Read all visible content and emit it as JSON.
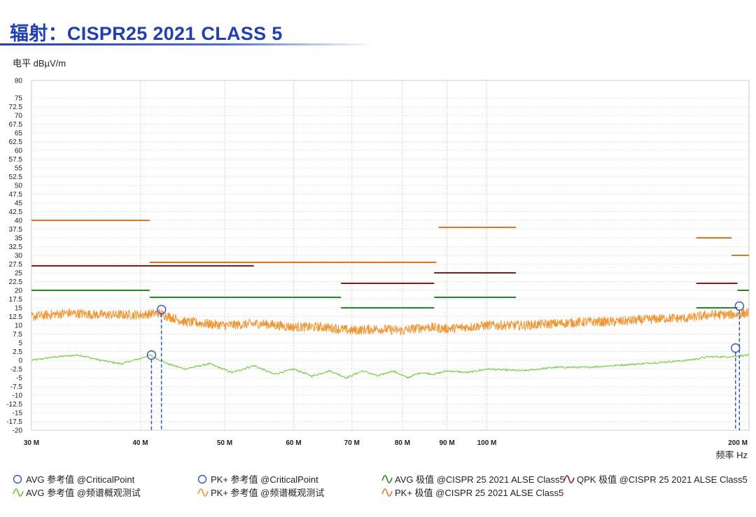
{
  "page": {
    "title": "辐射：CISPR25 2021 CLASS 5"
  },
  "chart_data": {
    "type": "line",
    "ylabel": "电平 dBµV/m",
    "xlabel": "频率 Hz",
    "x_scale": "log",
    "xlim": [
      30,
      200
    ],
    "ylim": [
      -20,
      80
    ],
    "x_ticks": [
      {
        "value": 30,
        "label": "30 M"
      },
      {
        "value": 40,
        "label": "40 M"
      },
      {
        "value": 50,
        "label": "50 M"
      },
      {
        "value": 60,
        "label": "60 M"
      },
      {
        "value": 70,
        "label": "70 M"
      },
      {
        "value": 80,
        "label": "80 M"
      },
      {
        "value": 90,
        "label": "90 M"
      },
      {
        "value": 100,
        "label": "100 M"
      },
      {
        "value": 200,
        "label": "200 M"
      }
    ],
    "y_ticks": [
      80,
      75,
      72.5,
      70,
      67.5,
      65,
      62.5,
      60,
      57.5,
      55,
      52.5,
      50,
      47.5,
      45,
      42.5,
      40,
      37.5,
      35,
      32.5,
      30,
      27.5,
      25,
      22.5,
      20,
      17.5,
      15,
      12.5,
      10,
      7.5,
      5,
      2.5,
      0,
      -2.5,
      -5,
      -7.5,
      -10,
      -12.5,
      -15,
      -17.5,
      -20
    ],
    "grid": true,
    "colors": {
      "pk_limit": "#e8741a",
      "qpk_limit": "#8b1a1a",
      "avg_limit": "#1e8c1e",
      "pk_trace": "#f5932a",
      "avg_trace": "#5ccc20",
      "marker": "#2f55d4"
    },
    "limits": {
      "pk": [
        {
          "x": [
            30,
            41
          ],
          "y": 40
        },
        {
          "x": [
            41,
            87.5
          ],
          "y": 28
        },
        {
          "x": [
            88,
            108
          ],
          "y": 38
        },
        {
          "x": [
            174,
            191
          ],
          "y": 35
        },
        {
          "x": [
            191,
            200
          ],
          "y": 30
        }
      ],
      "qpk": [
        {
          "x": [
            30,
            54
          ],
          "y": 27
        },
        {
          "x": [
            68,
            87
          ],
          "y": 22
        },
        {
          "x": [
            87,
            108
          ],
          "y": 25
        },
        {
          "x": [
            174,
            194
          ],
          "y": 22
        }
      ],
      "avg": [
        {
          "x": [
            30,
            41
          ],
          "y": 20
        },
        {
          "x": [
            41,
            68
          ],
          "y": 18
        },
        {
          "x": [
            68,
            87
          ],
          "y": 15
        },
        {
          "x": [
            87,
            108
          ],
          "y": 18
        },
        {
          "x": [
            174,
            194
          ],
          "y": 15
        },
        {
          "x": [
            194,
            200
          ],
          "y": 20
        }
      ]
    },
    "series": [
      {
        "name": "PK+ 参考值 @频谱概观测试",
        "x": [
          30,
          33,
          36,
          40,
          42,
          45,
          50,
          55,
          60,
          65,
          70,
          75,
          80,
          85,
          90,
          95,
          100,
          110,
          120,
          130,
          140,
          150,
          160,
          170,
          180,
          190,
          200
        ],
        "y": [
          12.5,
          13.5,
          13,
          13,
          13.5,
          11,
          10,
          10.5,
          9.5,
          9.5,
          8.5,
          9,
          8.5,
          9.5,
          9,
          9.5,
          10,
          10,
          10.5,
          11,
          11,
          11.5,
          12,
          12,
          13,
          13,
          13.5
        ]
      },
      {
        "name": "AVG 参考值 @频谱概观测试",
        "x": [
          30,
          32,
          34,
          36,
          38,
          40,
          41,
          43,
          45,
          48,
          51,
          54,
          57,
          60,
          63,
          66,
          69,
          72,
          75,
          78,
          81,
          84,
          87,
          90,
          95,
          100,
          110,
          120,
          130,
          140,
          150,
          160,
          170,
          180,
          190,
          200
        ],
        "y": [
          0,
          1,
          1.5,
          0,
          -1,
          0.5,
          1.5,
          -1,
          -2.5,
          -1,
          -3.5,
          -1.5,
          -4,
          -2.5,
          -4.5,
          -3,
          -5,
          -3,
          -4.5,
          -3,
          -5,
          -3.5,
          -4,
          -3,
          -3.5,
          -2.5,
          -3,
          -2,
          -2,
          -1.5,
          -1,
          -0.5,
          0,
          1,
          1,
          1.5
        ]
      }
    ],
    "critical_points": [
      {
        "name": "AVG 参考值 @CriticalPoint",
        "x": 41.2,
        "y": 1.5
      },
      {
        "name": "PK+ 参考值 @CriticalPoint",
        "x": 42.3,
        "y": 14.5
      },
      {
        "name": "AVG 参考值 @CriticalPoint",
        "x": 193,
        "y": 3.5
      },
      {
        "name": "PK+ 参考值 @CriticalPoint",
        "x": 195,
        "y": 15.5
      }
    ],
    "legend": [
      {
        "label": "AVG 参考值 @CriticalPoint",
        "icon": "circle-marker-icon",
        "color": "#2f55d4"
      },
      {
        "label": "PK+ 参考值 @CriticalPoint",
        "icon": "circle-marker-icon",
        "color": "#2f55d4"
      },
      {
        "label": "AVG 极值 @CISPR 25 2021 ALSE Class5",
        "icon": "wave-icon",
        "color": "#1e8c1e"
      },
      {
        "label": "QPK 极值 @CISPR 25 2021 ALSE Class5",
        "icon": "wave-icon",
        "color": "#8b1a1a"
      },
      {
        "label": "AVG 参考值 @频谱概观测试",
        "icon": "wave-icon",
        "color": "#5ccc20"
      },
      {
        "label": "PK+ 参考值 @频谱概观测试",
        "icon": "wave-icon",
        "color": "#f5932a"
      },
      {
        "label": "PK+ 极值 @CISPR 25 2021 ALSE Class5",
        "icon": "wave-icon",
        "color": "#e8741a"
      }
    ]
  }
}
